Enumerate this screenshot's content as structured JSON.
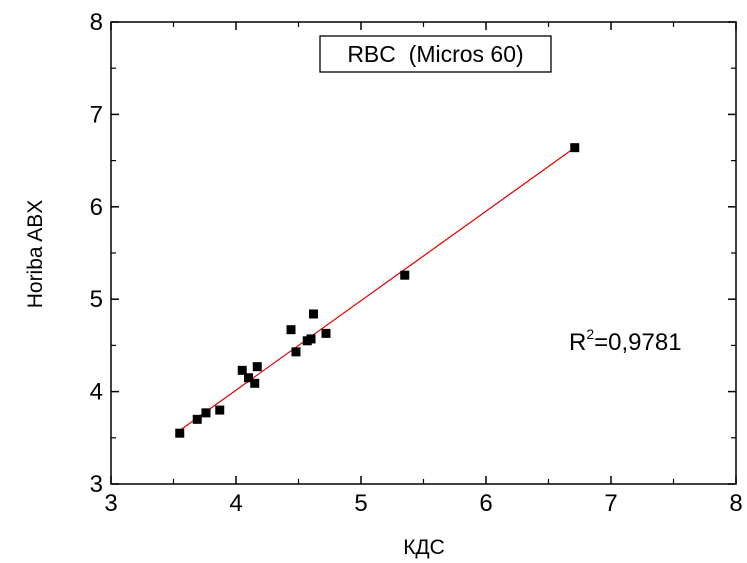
{
  "chart_data": {
    "type": "scatter",
    "xlabel": "КДС",
    "ylabel": "Horiba ABX",
    "xlim": [
      3,
      8
    ],
    "ylim": [
      3,
      8
    ],
    "xticks": [
      3,
      4,
      5,
      6,
      7,
      8
    ],
    "yticks": [
      3,
      4,
      5,
      6,
      7,
      8
    ],
    "grid": false,
    "legend": {
      "text": "RBC  (Micros 60)",
      "placement": "top-center"
    },
    "annotation": {
      "base": "R",
      "sup": "2",
      "rest": "=0,9781"
    },
    "series": [
      {
        "marker": "square",
        "color": "#000000",
        "x": [
          3.55,
          3.69,
          3.76,
          3.87,
          4.05,
          4.1,
          4.15,
          4.17,
          4.44,
          4.48,
          4.57,
          4.6,
          4.62,
          4.72,
          5.35,
          6.71
        ],
        "y": [
          3.55,
          3.7,
          3.77,
          3.8,
          4.23,
          4.15,
          4.09,
          4.27,
          4.67,
          4.43,
          4.55,
          4.57,
          4.84,
          4.63,
          5.26,
          6.64
        ]
      }
    ],
    "fit_line": {
      "color": "#e00000",
      "x": [
        3.53,
        6.71
      ],
      "y": [
        3.56,
        6.64
      ]
    }
  }
}
